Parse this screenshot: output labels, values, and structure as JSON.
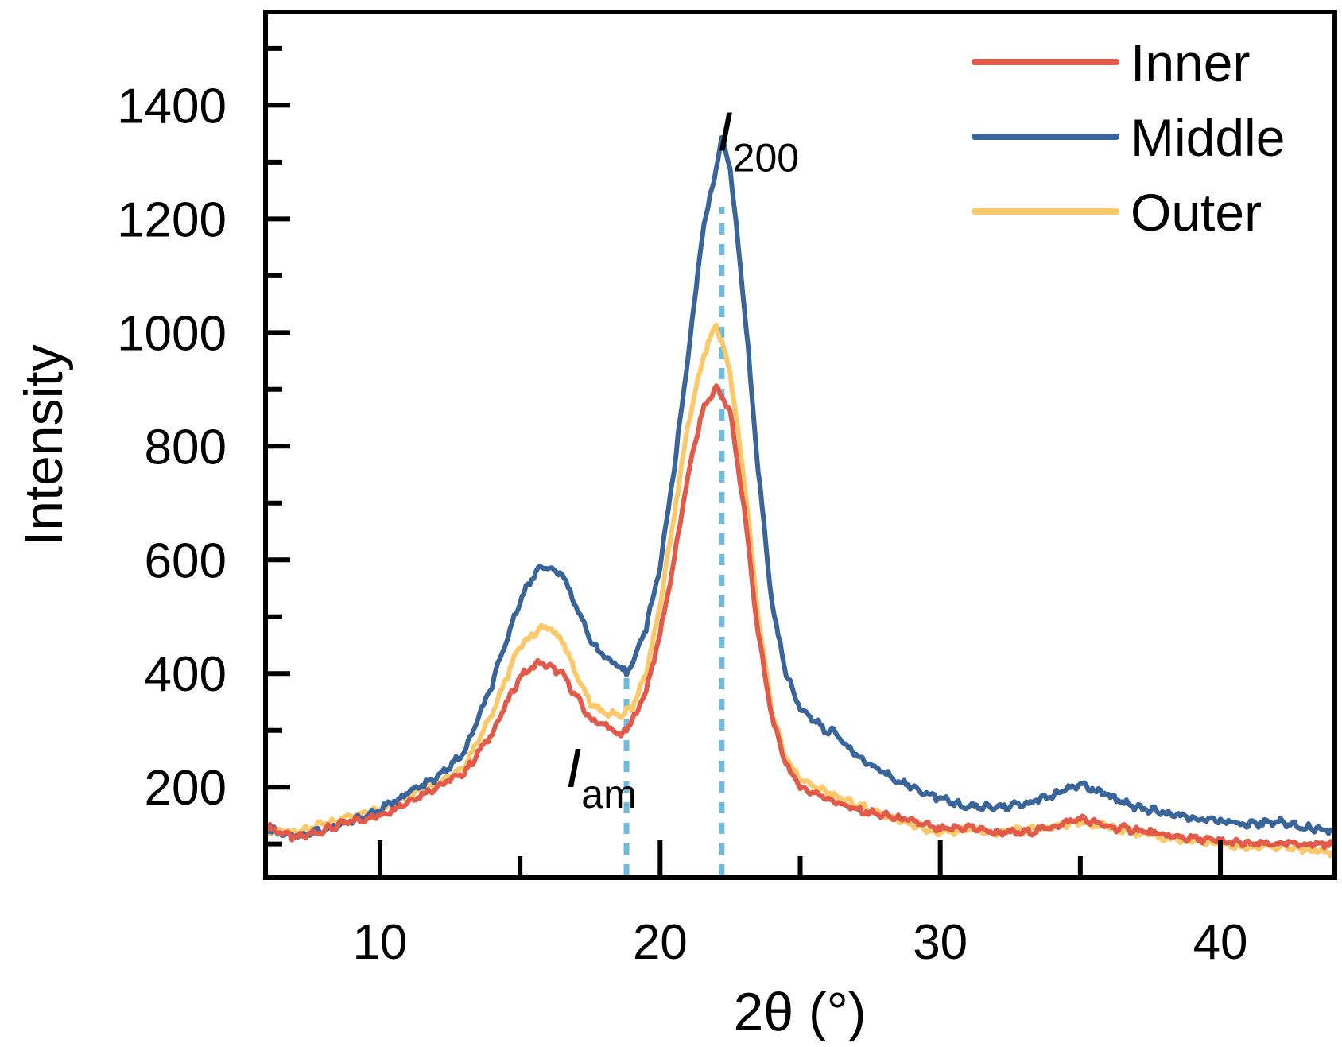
{
  "chart_data": {
    "type": "line",
    "title": "",
    "xlabel": "2θ (°)",
    "ylabel": "Intensity",
    "xlim": [
      6,
      44
    ],
    "ylim": [
      45,
      1560
    ],
    "xticks": [
      10,
      20,
      30,
      40
    ],
    "xtick_labels": [
      "10",
      "20",
      "30",
      "40"
    ],
    "xminor": [
      15,
      25,
      35
    ],
    "yticks": [
      200,
      400,
      600,
      800,
      1000,
      1200,
      1400
    ],
    "ytick_labels": [
      "200",
      "400",
      "600",
      "800",
      "1000",
      "1200",
      "1400"
    ],
    "yminor": [
      100,
      300,
      500,
      700,
      900,
      1100,
      1300,
      1500
    ],
    "legend_position": "top-right",
    "series": [
      {
        "name": "Inner",
        "color": "#e15a4a",
        "x": [
          6.0,
          7,
          8,
          9,
          10,
          11,
          12,
          13,
          14,
          15,
          15.7,
          16.5,
          17,
          17.5,
          18,
          18.6,
          19,
          19.5,
          20,
          20.5,
          21,
          21.5,
          22.0,
          22.5,
          23,
          23.5,
          24,
          24.5,
          25,
          26,
          27,
          28,
          29,
          30,
          31,
          32,
          33,
          34,
          35,
          36,
          37,
          38,
          39,
          40,
          41,
          42,
          43,
          44
        ],
        "y": [
          130,
          110,
          125,
          140,
          150,
          175,
          200,
          225,
          295,
          395,
          420,
          400,
          360,
          320,
          310,
          290,
          315,
          370,
          470,
          600,
          750,
          860,
          905,
          860,
          690,
          470,
          320,
          240,
          200,
          180,
          160,
          150,
          140,
          125,
          130,
          120,
          120,
          130,
          145,
          130,
          125,
          115,
          110,
          105,
          100,
          100,
          100,
          100
        ]
      },
      {
        "name": "Middle",
        "color": "#3a659b",
        "x": [
          6.0,
          7,
          8,
          9,
          10,
          11,
          12,
          13,
          14,
          15,
          15.7,
          16.5,
          17,
          17.5,
          18,
          18.8,
          19,
          19.5,
          20,
          20.5,
          21,
          21.5,
          22.2,
          22.5,
          23,
          23.5,
          24,
          24.5,
          25,
          26,
          26.2,
          27,
          28,
          29,
          30,
          31,
          32,
          33,
          34,
          35,
          36,
          37,
          38,
          39,
          40,
          41,
          42,
          43,
          44
        ],
        "y": [
          125,
          115,
          125,
          140,
          160,
          190,
          215,
          260,
          380,
          530,
          590,
          575,
          520,
          460,
          430,
          400,
          420,
          480,
          590,
          760,
          960,
          1170,
          1340,
          1290,
          1050,
          760,
          520,
          400,
          340,
          295,
          300,
          255,
          225,
          200,
          180,
          165,
          165,
          170,
          185,
          205,
          185,
          165,
          155,
          145,
          140,
          135,
          140,
          130,
          125
        ]
      },
      {
        "name": "Outer",
        "color": "#fbc86a",
        "x": [
          6.0,
          7,
          8,
          9,
          10,
          11,
          12,
          13,
          14,
          15,
          15.9,
          16.5,
          17,
          17.5,
          18,
          18.6,
          19,
          19.5,
          20,
          20.5,
          21,
          21.5,
          22.0,
          22.5,
          23,
          23.5,
          24,
          24.5,
          25,
          26,
          27,
          28,
          29,
          30,
          31,
          32,
          33,
          34,
          35,
          36,
          37,
          38,
          39,
          40,
          41,
          42,
          43,
          44
        ],
        "y": [
          125,
          120,
          135,
          150,
          160,
          185,
          205,
          235,
          330,
          450,
          485,
          460,
          400,
          350,
          330,
          325,
          340,
          400,
          520,
          680,
          840,
          950,
          1015,
          930,
          740,
          500,
          330,
          250,
          215,
          190,
          170,
          150,
          135,
          120,
          125,
          120,
          125,
          130,
          140,
          130,
          120,
          110,
          105,
          100,
          95,
          95,
          90,
          85
        ]
      }
    ],
    "reference_lines": [
      {
        "x": 18.8,
        "y_from": 45,
        "y_to": 400,
        "color": "#6bbcdd"
      },
      {
        "x": 22.2,
        "y_from": 45,
        "y_to": 1220,
        "color": "#6bbcdd"
      }
    ],
    "annotations": [
      {
        "base": "I",
        "subscript": "200",
        "x": 23.5,
        "y": 1320
      },
      {
        "base": "I",
        "subscript": "am",
        "x": 17.9,
        "y": 200
      }
    ]
  }
}
